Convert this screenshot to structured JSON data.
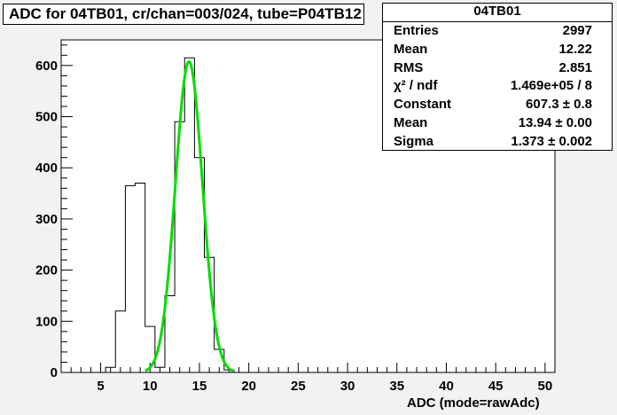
{
  "title": "ADC for 04TB01,  cr/chan=003/024,  tube=P04TB12",
  "stats": {
    "title": "04TB01",
    "rows": [
      {
        "key": "Entries",
        "value": "2997"
      },
      {
        "key": "Mean",
        "value": "12.22"
      },
      {
        "key": "RMS",
        "value": "2.851"
      },
      {
        "key": "χ² / ndf",
        "value": "1.469e+05 / 8"
      },
      {
        "key": "Constant",
        "value": "607.3 ± 0.8"
      },
      {
        "key": "Mean",
        "value": "13.94 ± 0.00"
      },
      {
        "key": "Sigma",
        "value": "1.373 ± 0.002"
      }
    ]
  },
  "colors": {
    "background": "#f2f2f2",
    "histogram": "#000000",
    "fit": "#00dd00"
  },
  "chart_data": {
    "type": "histogram",
    "xlabel": "ADC (mode=rawAdc)",
    "ylabel": "",
    "xlim": [
      1,
      51
    ],
    "ylim": [
      0,
      650
    ],
    "xticks": [
      5,
      10,
      15,
      20,
      25,
      30,
      35,
      40,
      45,
      50
    ],
    "yticks": [
      0,
      100,
      200,
      300,
      400,
      500,
      600
    ],
    "bins": [
      {
        "x0": 5.5,
        "x1": 6.5,
        "count": 10
      },
      {
        "x0": 6.5,
        "x1": 7.5,
        "count": 120
      },
      {
        "x0": 7.5,
        "x1": 8.5,
        "count": 365
      },
      {
        "x0": 8.5,
        "x1": 9.5,
        "count": 370
      },
      {
        "x0": 9.5,
        "x1": 10.5,
        "count": 90
      },
      {
        "x0": 10.5,
        "x1": 11.5,
        "count": 10
      },
      {
        "x0": 11.5,
        "x1": 12.5,
        "count": 150
      },
      {
        "x0": 12.5,
        "x1": 13.5,
        "count": 490
      },
      {
        "x0": 13.5,
        "x1": 14.5,
        "count": 615
      },
      {
        "x0": 14.5,
        "x1": 15.5,
        "count": 420
      },
      {
        "x0": 15.5,
        "x1": 16.5,
        "count": 225
      },
      {
        "x0": 16.5,
        "x1": 17.5,
        "count": 45
      },
      {
        "x0": 17.5,
        "x1": 18.5,
        "count": 5
      }
    ],
    "fit": {
      "type": "gaussian",
      "constant": 607.3,
      "mean": 13.94,
      "sigma": 1.373,
      "range": [
        9.5,
        18.5
      ]
    }
  }
}
